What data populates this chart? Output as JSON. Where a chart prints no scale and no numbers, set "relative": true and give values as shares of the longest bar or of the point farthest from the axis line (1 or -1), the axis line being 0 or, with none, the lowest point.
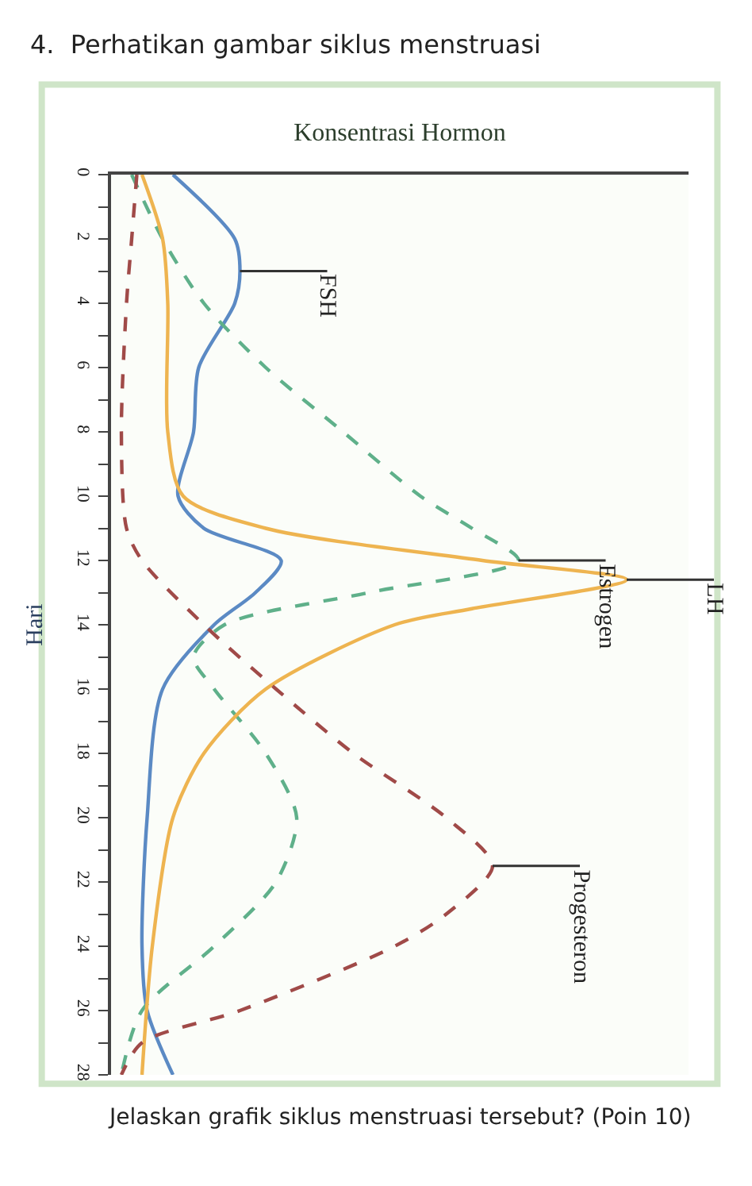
{
  "chart_data": {
    "type": "line",
    "title": "4.  Perhatikan gambar siklus menstruasi",
    "annotations": [
      "Jelaskan grafik siklus menstruasi tersebut? (Poin 10)"
    ],
    "xlabel": "Konsentrasi Hormon",
    "ylabel": "Hari",
    "orientation": "horizontal",
    "relative": true,
    "ylim": [
      28,
      0
    ],
    "yticks": [
      0,
      {
        "value": 1,
        "label": null
      },
      2,
      {
        "value": 3,
        "label": null
      },
      4,
      {
        "value": 5,
        "label": null
      },
      6,
      {
        "value": 7,
        "label": null
      },
      8,
      {
        "value": 9,
        "label": null
      },
      10,
      {
        "value": 11,
        "label": null
      },
      12,
      {
        "value": 13,
        "label": null
      },
      14,
      {
        "value": 15,
        "label": null
      },
      16,
      {
        "value": 17,
        "label": null
      },
      18,
      {
        "value": 19,
        "label": null
      },
      20,
      {
        "value": 21,
        "label": null
      },
      22,
      {
        "value": 23,
        "label": null
      },
      24,
      {
        "value": 25,
        "label": null
      },
      26,
      {
        "value": 27,
        "label": null
      },
      28
    ],
    "legend": false,
    "grid": false,
    "series": [
      {
        "name": "FSH",
        "color": "#5b8ac4",
        "line_style": "solid",
        "x": [
          0,
          2,
          3,
          4,
          6,
          8,
          10,
          11,
          12,
          13,
          14,
          16,
          20,
          24,
          26,
          28
        ],
        "values": [
          0.12,
          0.24,
          0.25,
          0.24,
          0.17,
          0.16,
          0.13,
          0.18,
          0.33,
          0.28,
          0.2,
          0.1,
          0.07,
          0.06,
          0.07,
          0.12
        ]
      },
      {
        "name": "Estrogen",
        "color": "#5fb08a",
        "line_style": "dashed",
        "x": [
          0,
          2,
          4,
          6,
          8,
          10,
          11,
          12,
          13,
          14,
          15,
          16,
          18,
          20,
          22,
          24,
          26,
          28
        ],
        "values": [
          0.04,
          0.1,
          0.18,
          0.3,
          0.45,
          0.6,
          0.7,
          0.79,
          0.5,
          0.22,
          0.16,
          0.2,
          0.3,
          0.36,
          0.32,
          0.2,
          0.06,
          0.02
        ]
      },
      {
        "name": "LH",
        "color": "#eeb450",
        "line_style": "solid",
        "x": [
          0,
          2,
          4,
          8,
          10,
          11,
          12,
          12.6,
          13.5,
          14,
          16,
          18,
          20,
          24,
          28
        ],
        "values": [
          0.06,
          0.1,
          0.11,
          0.11,
          0.14,
          0.3,
          0.72,
          1.0,
          0.7,
          0.55,
          0.3,
          0.18,
          0.12,
          0.08,
          0.06
        ]
      },
      {
        "name": "Progesteron",
        "color": "#a04a48",
        "line_style": "dashed",
        "x": [
          0,
          2,
          4,
          8,
          11,
          12,
          14,
          16,
          18,
          20,
          21.5,
          23,
          24,
          26,
          27,
          28
        ],
        "values": [
          0.05,
          0.04,
          0.03,
          0.02,
          0.03,
          0.06,
          0.18,
          0.32,
          0.47,
          0.65,
          0.74,
          0.65,
          0.55,
          0.25,
          0.06,
          0.02
        ]
      }
    ]
  }
}
